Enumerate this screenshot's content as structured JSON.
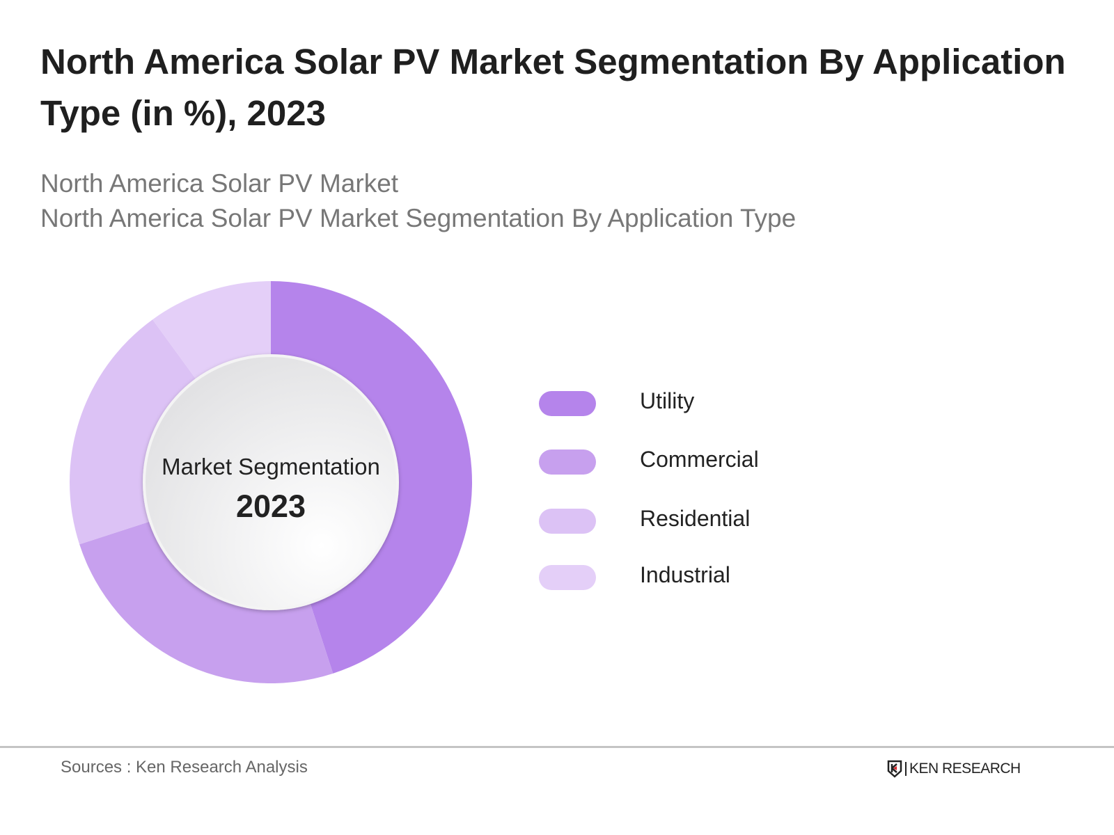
{
  "header": {
    "title": "North America Solar PV Market Segmentation By Application Type (in %), 2023",
    "subtitle_1": "North America Solar PV Market",
    "subtitle_2": "North America Solar PV Market Segmentation By Application Type"
  },
  "chart_data": {
    "type": "pie",
    "variant": "donut",
    "center_label": "Market Segmentation",
    "center_year": "2023",
    "categories": [
      "Utility",
      "Commercial",
      "Residential",
      "Industrial"
    ],
    "values": [
      45,
      25,
      20,
      10
    ],
    "colors": [
      "#b584eb",
      "#c7a0ee",
      "#dcc2f5",
      "#e4cff8"
    ],
    "legend_position": "right"
  },
  "footer": {
    "source": "Sources : Ken Research Analysis",
    "logo_text": "KEN RESEARCH"
  }
}
